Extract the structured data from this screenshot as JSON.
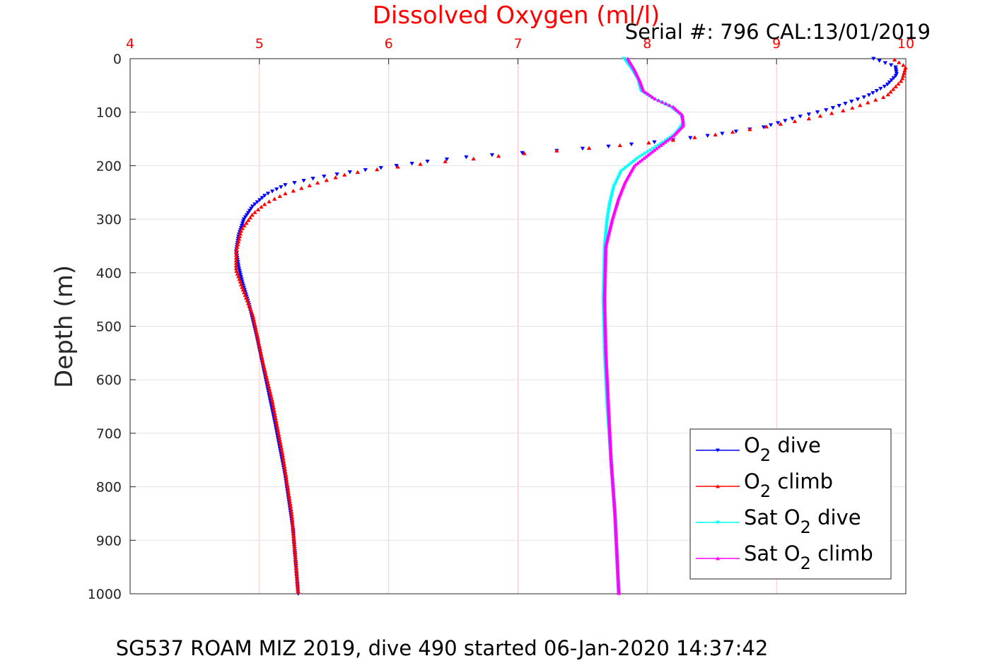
{
  "title": "Dissolved Oxygen (ml/l)",
  "serial_label": "Serial #: 796  CAL:13/01/2019",
  "footer": "SG537 ROAM MIZ 2019, dive 490 started 06-Jan-2020 14:37:42",
  "colors": {
    "title": "#ff0000",
    "x_ticks": "#ff0000",
    "grid_x": "#ffc0cb",
    "grid_y": "#e3e3e3",
    "o2_dive": "#0000ff",
    "o2_climb": "#ff0000",
    "sat_dive": "#00ffff",
    "sat_climb": "#ff00ff"
  },
  "chart_data": {
    "type": "scatter",
    "title": "Dissolved Oxygen (ml/l)",
    "xlabel": "",
    "ylabel": "Depth (m)",
    "xlim": [
      4,
      10
    ],
    "ylim": [
      0,
      1000
    ],
    "y_reversed": true,
    "x_axis_position": "top",
    "x_ticks": [
      "4",
      "5",
      "6",
      "7",
      "8",
      "9",
      "10"
    ],
    "y_ticks": [
      "0",
      "100",
      "200",
      "300",
      "400",
      "500",
      "600",
      "700",
      "800",
      "900",
      "1000"
    ],
    "grid": true,
    "legend_position": "bottom-right",
    "series": [
      {
        "name": "O₂ dive",
        "legend_main": "O",
        "legend_sub": "2",
        "legend_post": " dive",
        "legend_pre": "",
        "color": "#0000ff",
        "marker": "triangle-down",
        "points": [
          [
            9.75,
            0
          ],
          [
            9.92,
            15
          ],
          [
            9.93,
            30
          ],
          [
            9.85,
            50
          ],
          [
            9.7,
            70
          ],
          [
            9.4,
            95
          ],
          [
            9.15,
            110
          ],
          [
            8.9,
            128
          ],
          [
            8.5,
            143
          ],
          [
            8.1,
            155
          ],
          [
            7.7,
            164
          ],
          [
            7.3,
            172
          ],
          [
            6.9,
            178
          ],
          [
            6.6,
            184
          ],
          [
            6.3,
            192
          ],
          [
            6.0,
            202
          ],
          [
            5.7,
            212
          ],
          [
            5.45,
            222
          ],
          [
            5.2,
            236
          ],
          [
            5.05,
            254
          ],
          [
            4.95,
            275
          ],
          [
            4.88,
            300
          ],
          [
            4.84,
            330
          ],
          [
            4.82,
            360
          ],
          [
            4.84,
            390
          ],
          [
            4.87,
            420
          ],
          [
            4.92,
            460
          ],
          [
            4.98,
            520
          ],
          [
            5.05,
            600
          ],
          [
            5.12,
            680
          ],
          [
            5.2,
            780
          ],
          [
            5.26,
            880
          ],
          [
            5.3,
            1000
          ]
        ]
      },
      {
        "name": "O₂ climb",
        "legend_main": "O",
        "legend_sub": "2",
        "legend_post": " climb",
        "legend_pre": "",
        "color": "#ff0000",
        "marker": "triangle-up",
        "points": [
          [
            9.9,
            0
          ],
          [
            10.0,
            15
          ],
          [
            9.97,
            40
          ],
          [
            9.85,
            70
          ],
          [
            9.55,
            95
          ],
          [
            9.25,
            112
          ],
          [
            8.9,
            128
          ],
          [
            8.5,
            143
          ],
          [
            8.1,
            155
          ],
          [
            7.7,
            164
          ],
          [
            7.3,
            172
          ],
          [
            7.0,
            178
          ],
          [
            6.7,
            186
          ],
          [
            6.35,
            194
          ],
          [
            6.0,
            204
          ],
          [
            5.7,
            214
          ],
          [
            5.45,
            232
          ],
          [
            5.2,
            252
          ],
          [
            5.05,
            270
          ],
          [
            4.95,
            290
          ],
          [
            4.86,
            320
          ],
          [
            4.82,
            360
          ],
          [
            4.82,
            395
          ],
          [
            4.87,
            430
          ],
          [
            4.95,
            480
          ],
          [
            5.02,
            560
          ],
          [
            5.1,
            640
          ],
          [
            5.18,
            740
          ],
          [
            5.25,
            850
          ],
          [
            5.3,
            1000
          ]
        ]
      },
      {
        "name": "Sat O₂ dive",
        "legend_main": "O",
        "legend_sub": "2",
        "legend_post": " dive",
        "legend_pre": "Sat ",
        "color": "#00ffff",
        "marker": "triangle-down",
        "points": [
          [
            7.82,
            0
          ],
          [
            7.88,
            20
          ],
          [
            7.93,
            40
          ],
          [
            7.95,
            60
          ],
          [
            8.05,
            75
          ],
          [
            8.18,
            90
          ],
          [
            8.26,
            105
          ],
          [
            8.28,
            120
          ],
          [
            8.22,
            140
          ],
          [
            8.1,
            160
          ],
          [
            7.93,
            185
          ],
          [
            7.8,
            210
          ],
          [
            7.74,
            240
          ],
          [
            7.71,
            270
          ],
          [
            7.69,
            300
          ],
          [
            7.67,
            350
          ],
          [
            7.66,
            450
          ],
          [
            7.67,
            550
          ],
          [
            7.69,
            650
          ],
          [
            7.72,
            750
          ],
          [
            7.75,
            850
          ],
          [
            7.78,
            1000
          ]
        ]
      },
      {
        "name": "Sat O₂ climb",
        "legend_main": "O",
        "legend_sub": "2",
        "legend_post": " climb",
        "legend_pre": "Sat ",
        "color": "#ff00ff",
        "marker": "triangle-up",
        "points": [
          [
            7.85,
            0
          ],
          [
            7.9,
            20
          ],
          [
            7.94,
            40
          ],
          [
            7.97,
            60
          ],
          [
            8.06,
            75
          ],
          [
            8.2,
            90
          ],
          [
            8.27,
            105
          ],
          [
            8.28,
            125
          ],
          [
            8.2,
            145
          ],
          [
            8.06,
            170
          ],
          [
            7.9,
            200
          ],
          [
            7.83,
            230
          ],
          [
            7.78,
            260
          ],
          [
            7.73,
            300
          ],
          [
            7.68,
            350
          ],
          [
            7.67,
            450
          ],
          [
            7.68,
            550
          ],
          [
            7.7,
            650
          ],
          [
            7.72,
            750
          ],
          [
            7.75,
            850
          ],
          [
            7.78,
            1000
          ]
        ]
      }
    ]
  }
}
